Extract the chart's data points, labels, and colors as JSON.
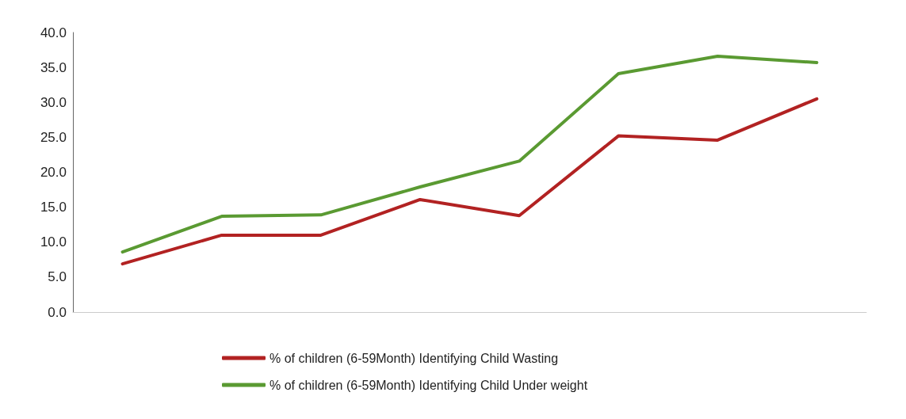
{
  "chart_data": {
    "type": "line",
    "categories": [
      null,
      null,
      null,
      null,
      null,
      null,
      null,
      null
    ],
    "series": [
      {
        "name": "% of children (6-59Month) Identifying Child Wasting",
        "color": "#b22222",
        "values": [
          6.9,
          11.0,
          11.0,
          16.1,
          13.8,
          25.2,
          24.6,
          30.5
        ]
      },
      {
        "name": "% of children (6-59Month) Identifying Child Under weight",
        "color": "#5a9a32",
        "values": [
          8.6,
          13.7,
          13.9,
          17.9,
          21.6,
          34.1,
          36.6,
          35.7
        ]
      }
    ],
    "ylim": [
      0,
      40
    ],
    "yticks": [
      {
        "value": 0,
        "label": "0.0"
      },
      {
        "value": 5,
        "label": "5.0"
      },
      {
        "value": 10,
        "label": "10.0"
      },
      {
        "value": 15,
        "label": "15.0"
      },
      {
        "value": 20,
        "label": "20.0"
      },
      {
        "value": 25,
        "label": "25.0"
      },
      {
        "value": 30,
        "label": "30.0"
      },
      {
        "value": 35,
        "label": "35.0"
      },
      {
        "value": 40,
        "label": "40.0"
      }
    ],
    "grid": false,
    "legend": "bottom",
    "marker": "none",
    "line_style": "solid"
  }
}
